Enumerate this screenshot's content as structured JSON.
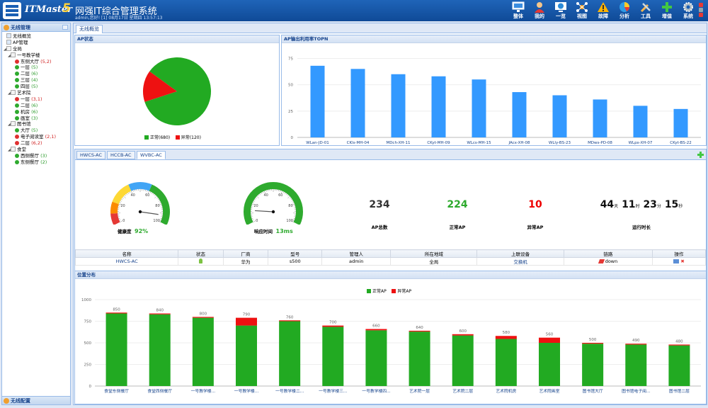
{
  "header": {
    "brand": "ITMaster",
    "brand_version": "5",
    "title": "网强IT综合管理系统",
    "user_info": "admin,您好! [1] 08月17日 星期四 13:57:13",
    "nav": [
      {
        "label": "整体",
        "icon": "monitor-icon"
      },
      {
        "label": "我的",
        "icon": "user-icon"
      },
      {
        "label": "一览",
        "icon": "globe-icon"
      },
      {
        "label": "视图",
        "icon": "view-icon"
      },
      {
        "label": "故障",
        "icon": "warning-icon"
      },
      {
        "label": "分析",
        "icon": "pie-icon"
      },
      {
        "label": "工具",
        "icon": "tools-icon"
      },
      {
        "label": "增值",
        "icon": "plus-icon"
      },
      {
        "label": "系统",
        "icon": "gear-icon"
      }
    ]
  },
  "sidebar": {
    "title": "无线管理",
    "bottom": "无线配置",
    "tree": [
      {
        "label": "无线概览",
        "level": 0,
        "kind": "leaf",
        "count": ""
      },
      {
        "label": "AP管理",
        "level": 0,
        "kind": "leaf",
        "count": ""
      },
      {
        "label": "全局",
        "level": 0,
        "kind": "folder",
        "count": ""
      },
      {
        "label": "一号教学楼",
        "level": 1,
        "kind": "folder",
        "count": ""
      },
      {
        "label": "东侧大厅",
        "level": 2,
        "kind": "red",
        "count": "(5,2)"
      },
      {
        "label": "一层",
        "level": 2,
        "kind": "green",
        "count": "(5)"
      },
      {
        "label": "二层",
        "level": 2,
        "kind": "green",
        "count": "(6)"
      },
      {
        "label": "三层",
        "level": 2,
        "kind": "green",
        "count": "(4)"
      },
      {
        "label": "四层",
        "level": 2,
        "kind": "green",
        "count": "(5)"
      },
      {
        "label": "艺术院",
        "level": 1,
        "kind": "folder",
        "count": ""
      },
      {
        "label": "一层",
        "level": 2,
        "kind": "red",
        "count": "(3,1)"
      },
      {
        "label": "二层",
        "level": 2,
        "kind": "green",
        "count": "(6)"
      },
      {
        "label": "机房",
        "level": 2,
        "kind": "green",
        "count": "(6)"
      },
      {
        "label": "画室",
        "level": 2,
        "kind": "green",
        "count": "(3)"
      },
      {
        "label": "图书馆",
        "level": 1,
        "kind": "folder",
        "count": ""
      },
      {
        "label": "大厅",
        "level": 2,
        "kind": "green",
        "count": "(5)"
      },
      {
        "label": "电子阅读室",
        "level": 2,
        "kind": "red",
        "count": "(2,1)"
      },
      {
        "label": "二层",
        "level": 2,
        "kind": "red",
        "count": "(6,2)"
      },
      {
        "label": "食堂",
        "level": 1,
        "kind": "folder",
        "count": ""
      },
      {
        "label": "西侧餐厅",
        "level": 2,
        "kind": "green",
        "count": "(3)"
      },
      {
        "label": "东侧餐厅",
        "level": 2,
        "kind": "green",
        "count": "(2)"
      }
    ]
  },
  "main_tab": "无线概览",
  "ap_status": {
    "title": "AP状态",
    "normal_label": "正常",
    "normal_value": 680,
    "normal_text": "(680)",
    "abnormal_label": "异常",
    "abnormal_value": 120,
    "abnormal_text": "(120)",
    "normal_color": "#22aa22",
    "abnormal_color": "#ee1111"
  },
  "topn": {
    "title": "AP输出利用率TOPN",
    "color": "#3399ff"
  },
  "ac_tabs": [
    "HWCS-AC",
    "HCCB-AC",
    "WVBC-AC"
  ],
  "gauges": {
    "health": {
      "label": "健康度",
      "value_text": "92%",
      "value": 92
    },
    "response": {
      "label": "响应时间",
      "value_text": "13ms",
      "value": 13
    },
    "tick_labels": [
      "0",
      "20",
      "40",
      "60",
      "80",
      "100"
    ]
  },
  "metrics": {
    "ap_total": {
      "value": "234",
      "label": "AP总数"
    },
    "ap_normal": {
      "value": "224",
      "label": "正常AP"
    },
    "ap_abnormal": {
      "value": "10",
      "label": "异常AP"
    },
    "uptime": {
      "days": "44",
      "days_unit": "天",
      "hours": "11",
      "hours_unit": "时",
      "mins": "23",
      "mins_unit": "分",
      "secs": "15",
      "secs_unit": "秒",
      "label": "运行时长"
    }
  },
  "ac_table": {
    "headers": [
      "名称",
      "状态",
      "厂商",
      "型号",
      "管理人",
      "所在地域",
      "上联设备",
      "链路",
      "操作"
    ],
    "row": {
      "name": "HWCS-AC",
      "vendor": "华为",
      "model": "s500",
      "admin": "admin",
      "region": "全局",
      "uplink": "交换机",
      "link": "down"
    }
  },
  "location": {
    "title": "位置分布",
    "legend_normal": "正常AP",
    "legend_abnormal": "异常AP"
  },
  "chart_data": [
    {
      "type": "pie",
      "title": "AP状态",
      "categories": [
        "正常",
        "异常"
      ],
      "values": [
        680,
        120
      ],
      "colors": [
        "#22aa22",
        "#ee1111"
      ]
    },
    {
      "type": "bar",
      "title": "AP输出利用率TOPN",
      "categories": [
        "WLan-JD-01",
        "CKls-MH-04",
        "MDch-XH-11",
        "CKyt-MH-09",
        "WLcs-MH-15",
        "JAcx-XH-08",
        "WLly-BS-23",
        "MDws-PD-08",
        "WLpx-XH-07",
        "CKyt-BS-22"
      ],
      "values": [
        68,
        65,
        60,
        58,
        55,
        43,
        40,
        36,
        30,
        27
      ],
      "yticks": [
        0,
        25,
        50,
        75
      ],
      "ylim": [
        0,
        80
      ]
    },
    {
      "type": "bar",
      "stacked": true,
      "title": "位置分布",
      "categories": [
        "食堂东侧餐厅",
        "食堂西侧餐厅",
        "一号教学楼...",
        "一号教学楼...",
        "一号教学楼二...",
        "一号教学楼三...",
        "一号教学楼四...",
        "艺术院一层",
        "艺术院二层",
        "艺术院机房",
        "艺术院画室",
        "图书馆大厅",
        "图书馆电子阅...",
        "图书馆二层"
      ],
      "totals": [
        850,
        840,
        800,
        790,
        760,
        700,
        660,
        640,
        600,
        580,
        560,
        500,
        490,
        480
      ],
      "series": [
        {
          "name": "正常AP",
          "values": [
            840,
            830,
            790,
            700,
            750,
            685,
            645,
            630,
            585,
            545,
            500,
            490,
            480,
            470
          ],
          "color": "#22aa22"
        },
        {
          "name": "异常AP",
          "values": [
            10,
            10,
            10,
            90,
            10,
            15,
            15,
            10,
            15,
            35,
            60,
            10,
            10,
            10
          ],
          "color": "#ee1111"
        }
      ],
      "yticks": [
        0,
        250,
        500,
        750,
        1000
      ],
      "ylim": [
        0,
        1000
      ]
    }
  ]
}
